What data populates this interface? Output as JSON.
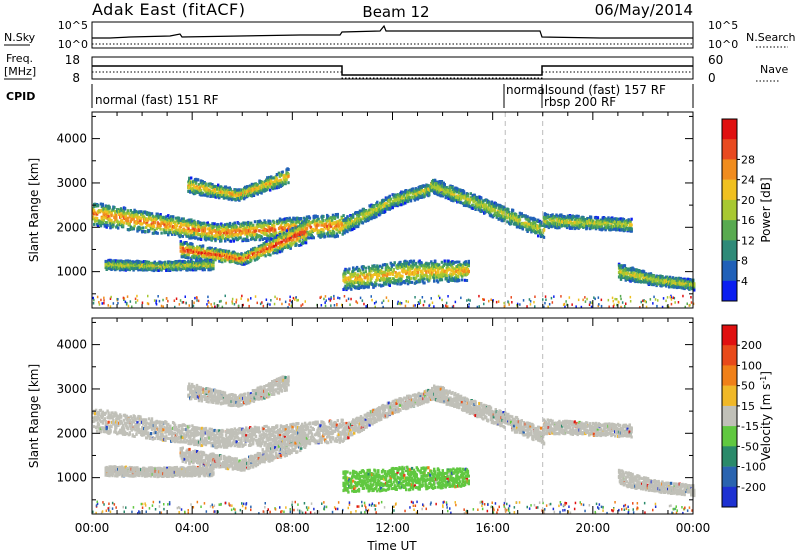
{
  "header": {
    "station": "Adak East (fitACF)",
    "beam": "Beam 12",
    "date": "06/May/2014"
  },
  "aux": {
    "nsky_label": "N.Sky",
    "nsky_ticks": [
      "10^5",
      "10^0"
    ],
    "nsearch_label": "N.Search",
    "nsearch_ticks": [
      "10^5",
      "10^0"
    ],
    "freq_label": "Freq.",
    "freq_unit": "[MHz]",
    "freq_ticks": [
      "18",
      "8"
    ],
    "nave_label": "Nave",
    "nave_ticks": [
      "60",
      "0"
    ],
    "cpid_label": "CPID",
    "cpid_segments": [
      "normal (fast) 151 RF",
      "normalsound (fast) 157 RF",
      "rbsp 200 RF"
    ]
  },
  "chart_data": [
    {
      "type": "heatmap",
      "name": "power-panel",
      "ylabel": "Slant Range [km]",
      "xlabel": "",
      "xlim": [
        0,
        24
      ],
      "ylim": [
        180,
        4600
      ],
      "yticks": [
        "1000",
        "2000",
        "3000",
        "4000"
      ],
      "colorbar": {
        "label": "Power [dB]",
        "ticks": [
          "4",
          "8",
          "12",
          "16",
          "20",
          "24",
          "28"
        ],
        "colors": [
          "#0a1ef0",
          "#2060b8",
          "#2e8a78",
          "#58aa50",
          "#a8c832",
          "#f0c020",
          "#f08c1e",
          "#e84a20",
          "#e01010"
        ]
      },
      "bands": [
        {
          "t": [
            0,
            10
          ],
          "c": [
            2300,
            1870,
            2050
          ],
          "w": [
            260,
            200,
            260
          ],
          "lvl": 3
        },
        {
          "t": [
            3.5,
            8.5
          ],
          "c": [
            1500,
            1280,
            1900
          ],
          "w": [
            180,
            120,
            260
          ],
          "lvl": 4
        },
        {
          "t": [
            3.8,
            7.8
          ],
          "c": [
            2950,
            2720,
            3150
          ],
          "w": [
            180,
            120,
            180
          ],
          "lvl": 2
        },
        {
          "t": [
            0.5,
            4.8
          ],
          "c": [
            1150,
            1120,
            1150
          ],
          "w": [
            110,
            100,
            110
          ],
          "lvl": 1
        },
        {
          "t": [
            10,
            14
          ],
          "c": [
            2020,
            2600,
            2950
          ],
          "w": [
            180,
            150,
            120
          ],
          "lvl": 1
        },
        {
          "t": [
            13.5,
            18
          ],
          "c": [
            2950,
            2450,
            1930
          ],
          "w": [
            160,
            170,
            180
          ],
          "lvl": 1
        },
        {
          "t": [
            10,
            15
          ],
          "c": [
            820,
            980,
            1020
          ],
          "w": [
            240,
            260,
            220
          ],
          "lvl": 2
        },
        {
          "t": [
            18,
            21.5
          ],
          "c": [
            2150,
            2100,
            2050
          ],
          "w": [
            160,
            140,
            140
          ],
          "lvl": 1
        },
        {
          "t": [
            21,
            24
          ],
          "c": [
            1000,
            800,
            700
          ],
          "w": [
            180,
            120,
            120
          ],
          "lvl": 1
        }
      ]
    },
    {
      "type": "heatmap",
      "name": "velocity-panel",
      "ylabel": "Slant Range [km]",
      "xlabel": "Time UT",
      "xlim": [
        0,
        24
      ],
      "ylim": [
        180,
        4600
      ],
      "xticks": [
        "00:00",
        "04:00",
        "08:00",
        "12:00",
        "16:00",
        "20:00",
        "00:00"
      ],
      "yticks": [
        "1000",
        "2000",
        "3000",
        "4000"
      ],
      "colorbar": {
        "label": "Velocity [m s^-1]",
        "ticks": [
          "200",
          "100",
          "50",
          "15",
          "-15",
          "-50",
          "-100",
          "-200"
        ],
        "colors": [
          "#1e32d2",
          "#2a64b0",
          "#2a8a6a",
          "#60c840",
          "#c0c0b8",
          "#f0b828",
          "#f08018",
          "#e84a1a",
          "#e01010"
        ]
      },
      "bands": [
        {
          "t": [
            0,
            10
          ],
          "c": [
            2300,
            1870,
            2050
          ],
          "w": [
            260,
            200,
            260
          ],
          "col": "#c0c0b8"
        },
        {
          "t": [
            3.5,
            8.5
          ],
          "c": [
            1500,
            1280,
            1900
          ],
          "w": [
            180,
            120,
            260
          ],
          "col": "#c0c0b8"
        },
        {
          "t": [
            3.8,
            7.8
          ],
          "c": [
            2950,
            2720,
            3150
          ],
          "w": [
            180,
            120,
            180
          ],
          "col": "#c0c0b8"
        },
        {
          "t": [
            0.5,
            4.8
          ],
          "c": [
            1150,
            1120,
            1150
          ],
          "w": [
            110,
            100,
            110
          ],
          "col": "#c0c0b8"
        },
        {
          "t": [
            10,
            14
          ],
          "c": [
            2020,
            2600,
            2950
          ],
          "w": [
            180,
            150,
            120
          ],
          "col": "#c0c0b8"
        },
        {
          "t": [
            13.5,
            18
          ],
          "c": [
            2950,
            2450,
            1930
          ],
          "w": [
            160,
            170,
            180
          ],
          "col": "#c0c0b8"
        },
        {
          "t": [
            10,
            15
          ],
          "c": [
            900,
            980,
            1000
          ],
          "w": [
            230,
            260,
            200
          ],
          "col": "#60c840"
        },
        {
          "t": [
            18,
            21.5
          ],
          "c": [
            2150,
            2100,
            2050
          ],
          "w": [
            160,
            140,
            140
          ],
          "col": "#c0c0b8"
        },
        {
          "t": [
            21,
            24
          ],
          "c": [
            1000,
            800,
            700
          ],
          "w": [
            180,
            120,
            120
          ],
          "col": "#c0c0b8"
        }
      ]
    }
  ]
}
